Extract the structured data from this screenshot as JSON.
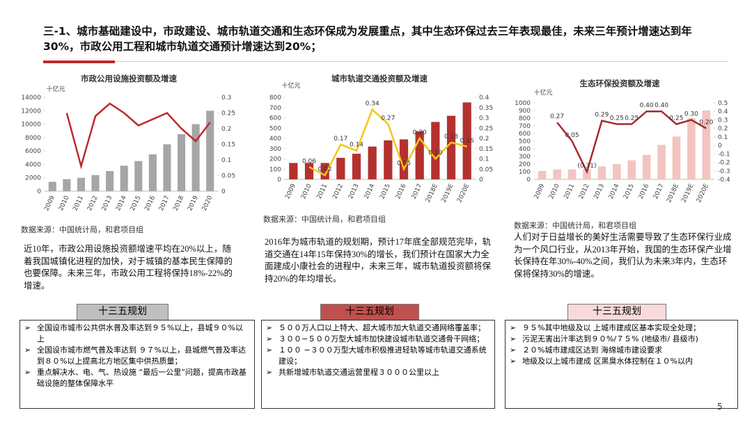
{
  "header": {
    "title": "三-1、城市基础建设中，市政建设、城市轨道交通和生态环保成为发展重点，其中生态环保过去三年表现最佳，未来三年预计增速达到年30%，市政公用工程和城市轨道交通预计增速达到20%；"
  },
  "chart_data": [
    {
      "type": "bar",
      "title": "市政公用设施投资额及增速",
      "y_label": "十亿元",
      "categories": [
        "2009",
        "2010",
        "2011",
        "2012",
        "2013",
        "2014",
        "2015",
        "2016",
        "2017",
        "2018",
        "2019",
        "2020"
      ],
      "ylim": [
        0,
        14000
      ],
      "yticks": [
        0,
        2000,
        4000,
        6000,
        8000,
        10000,
        12000,
        14000
      ],
      "y2lim": [
        0,
        0.3
      ],
      "y2ticks": [
        0,
        0.05,
        0.1,
        0.15,
        0.2,
        0.25,
        0.3
      ],
      "series": [
        {
          "type": "bar",
          "color": "#a6a6a6",
          "values": [
            1400,
            1800,
            2000,
            2400,
            3000,
            3800,
            4500,
            5500,
            7000,
            8500,
            10000,
            12000
          ]
        },
        {
          "type": "line",
          "axis": "y2",
          "color": "#c0282d",
          "values": [
            null,
            0.25,
            0.08,
            0.24,
            0.28,
            0.25,
            0.21,
            0.23,
            0.25,
            0.2,
            0.16,
            0.22
          ]
        }
      ]
    },
    {
      "type": "bar",
      "title": "城市轨道交通投资额及增速",
      "y_label": "十亿元",
      "categories": [
        "2009",
        "2010",
        "2011",
        "2012",
        "2013",
        "2014",
        "2015",
        "2016",
        "2017",
        "2018E",
        "2019E",
        "2020E"
      ],
      "ylim": [
        0,
        800
      ],
      "yticks": [
        0,
        100,
        200,
        300,
        400,
        500,
        600,
        700,
        800
      ],
      "y2lim": [
        0,
        0.4
      ],
      "y2ticks": [
        0,
        0.05,
        0.1,
        0.15,
        0.2,
        0.25,
        0.3,
        0.35,
        0.4
      ],
      "series": [
        {
          "type": "bar",
          "color": "#b3312f",
          "values": [
            160,
            160,
            160,
            210,
            250,
            320,
            380,
            390,
            470,
            560,
            620,
            750
          ]
        },
        {
          "type": "line",
          "axis": "y2",
          "color": "#f5c518",
          "values": [
            null,
            0.06,
            0.02,
            0.17,
            0.14,
            0.34,
            0.27,
            0.05,
            0.2,
            0.1,
            0.18,
            0.16
          ],
          "value_labels": [
            null,
            "0.06",
            "0.02",
            "0.17",
            "0.14",
            "0.34",
            "0.27",
            "0.05",
            "0.20",
            "0.10",
            "0.18",
            "0.16"
          ]
        }
      ]
    },
    {
      "type": "bar",
      "title": "生态环保投资额及增速",
      "y_label": "十亿元",
      "categories": [
        "2009",
        "2010",
        "2011",
        "2012",
        "2013",
        "2014",
        "2015",
        "2016",
        "2017",
        "2018E",
        "2019E",
        "2020E"
      ],
      "ylim": [
        0,
        1000
      ],
      "yticks": [
        0,
        100,
        200,
        300,
        400,
        500,
        600,
        700,
        800,
        900,
        1000
      ],
      "y2lim": [
        -0.4,
        0.5
      ],
      "y2ticks": [
        -0.4,
        -0.3,
        -0.2,
        -0.1,
        0,
        0.1,
        0.2,
        0.3,
        0.4,
        0.5
      ],
      "series": [
        {
          "type": "bar",
          "color": "#f2c4c0",
          "values": [
            110,
            130,
            130,
            130,
            170,
            200,
            250,
            320,
            450,
            560,
            800,
            900
          ]
        },
        {
          "type": "line",
          "axis": "y2",
          "color": "#a52a2a",
          "values": [
            null,
            0.27,
            0.05,
            -0.31,
            0.29,
            0.25,
            0.25,
            0.4,
            0.4,
            0.25,
            0.3,
            0.2
          ],
          "value_labels": [
            null,
            "0.27",
            "0.05",
            "(0.31)",
            "0.29",
            "0.25",
            "0.25",
            "0.40",
            "0.40",
            "0.25",
            "0.30",
            "0.20"
          ]
        }
      ]
    }
  ],
  "panels": [
    {
      "source": "数据来源：中国统计局，和君项目组",
      "text": "近10年，市政公用设施投资额增速平均在20%以上，随着我国城镇化进程的加快，对于城镇的基本民生保障的也要保障。未来三年，市政公用工程将保持18%-22%的增速。",
      "plan_title": "十三五规划",
      "plan_items": [
        "全国设市城市公共供水普及率达到９５%以上，县城９０%以上",
        "全国设市城市燃气普及率达到 ９７%以上，县城燃气普及率达到８０%以上提高北方地区集中供热质量；",
        "重点解决水、电、气、热设施 “最后一公里”问题，提高市政基础设施的整体保障水平"
      ]
    },
    {
      "source": "数据来源：中国统计局，和君项目组",
      "text": "2016年为城市轨道的规划期，预计17年底全部规范完毕，轨道交通在14年15年保持30%的增长，我们预计在国家大力全面建成小康社会的进程中，未来三年，城市轨道投资额将保持20%的年均增长。",
      "plan_title": "十三五规划",
      "plan_items": [
        "５００万人口以上特大、超大城市加大轨道交通网络覆盖率；",
        "３００−５００万型大城市加快建设城市轨道交通骨干网络；",
        "１００ −３００万型大城市积极推进轻轨等城市轨道交通系统建设；",
        "共新增城市轨道交通运营里程３０００公里以上"
      ]
    },
    {
      "source": "数据来源：中国统计局，和君项目组",
      "text": "人们对于日益增长的美好生活需要导致了生态环保行业成为一个风口行业，从2013年开始，我国的生态环保产业增长保持在年30%-40%之间，我们认为未来3年内，生态环保将保持30%的增速。",
      "plan_title": "十三五规划",
      "plan_items": [
        "９５%其中地级及以 上城市建成区基本实现全处理；",
        "污泥无害出汁率达到９０%/７５% (地级市/ 县级市)",
        "２０%城市建成区达到 海绵城市建设要求",
        "地级及以上城市建成 区黑臭水体控制在１０%以内"
      ]
    }
  ],
  "page_number": "5"
}
